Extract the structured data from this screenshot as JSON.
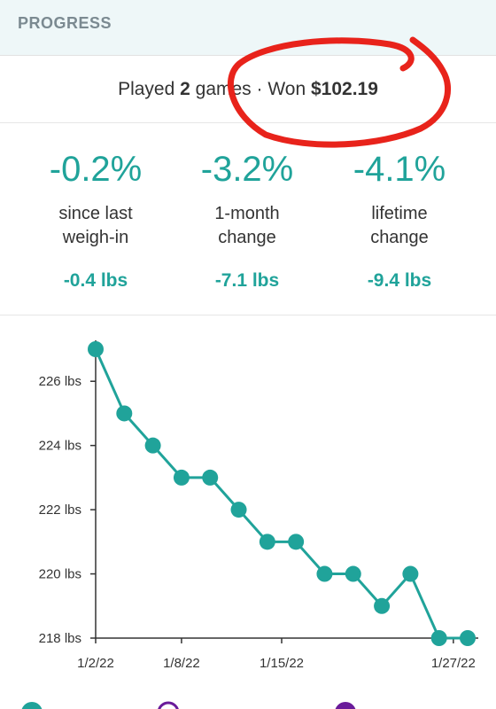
{
  "header": {
    "title": "PROGRESS"
  },
  "summary": {
    "played_prefix": "Played ",
    "games_count": "2",
    "games_suffix": " games · Won ",
    "won_amount": "$102.19"
  },
  "stats": [
    {
      "percent": "-0.2%",
      "label_line1": "since last",
      "label_line2": "weigh-in",
      "lbs": "-0.4 lbs"
    },
    {
      "percent": "-3.2%",
      "label_line1": "1-month",
      "label_line2": "change",
      "lbs": "-7.1 lbs"
    },
    {
      "percent": "-4.1%",
      "label_line1": "lifetime",
      "label_line2": "change",
      "lbs": "-9.4 lbs"
    }
  ],
  "colors": {
    "accent": "#20a39a",
    "annotation": "#e8231b",
    "legend_purple": "#6a1b9a"
  },
  "chart_data": {
    "type": "line",
    "x": [
      "1/2/22",
      "1/4/22",
      "1/6/22",
      "1/8/22",
      "1/10/22",
      "1/12/22",
      "1/14/22",
      "1/16/22",
      "1/18/22",
      "1/20/22",
      "1/22/22",
      "1/24/22",
      "1/26/22",
      "1/28/22"
    ],
    "values": [
      227,
      225,
      224,
      223,
      223,
      222,
      221,
      221,
      220,
      220,
      219,
      220,
      218,
      218
    ],
    "y_ticks": [
      "226 lbs",
      "224 lbs",
      "222 lbs",
      "220 lbs",
      "218 lbs"
    ],
    "y_tick_values": [
      226,
      224,
      222,
      220,
      218
    ],
    "x_ticks": [
      "1/2/22",
      "1/8/22",
      "1/15/22",
      "1/27/22"
    ],
    "ylim": [
      218,
      227
    ],
    "grid": false
  },
  "legend": {
    "icons": [
      "teal-filled-circle-icon",
      "purple-outline-circle-icon",
      "purple-filled-circle-icon"
    ]
  }
}
